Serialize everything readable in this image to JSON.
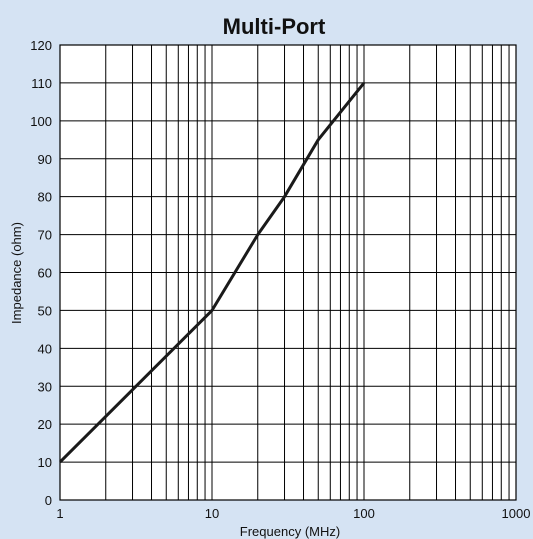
{
  "chart_data": {
    "type": "line",
    "title": "Multi-Port",
    "xlabel": "Frequency (MHz)",
    "ylabel": "Impedance (ohm)",
    "x_scale": "log",
    "xlim": [
      1,
      1000
    ],
    "ylim": [
      0,
      120
    ],
    "grid": true,
    "x_ticks": [
      {
        "value": 1,
        "label": "1"
      },
      {
        "value": 10,
        "label": "10"
      },
      {
        "value": 100,
        "label": "100"
      },
      {
        "value": 1000,
        "label": "1000"
      }
    ],
    "y_ticks": [
      {
        "value": 0,
        "label": "0"
      },
      {
        "value": 10,
        "label": "10"
      },
      {
        "value": 20,
        "label": "20"
      },
      {
        "value": 30,
        "label": "30"
      },
      {
        "value": 40,
        "label": "40"
      },
      {
        "value": 50,
        "label": "50"
      },
      {
        "value": 60,
        "label": "60"
      },
      {
        "value": 70,
        "label": "70"
      },
      {
        "value": 80,
        "label": "80"
      },
      {
        "value": 90,
        "label": "90"
      },
      {
        "value": 100,
        "label": "100"
      },
      {
        "value": 110,
        "label": "110"
      },
      {
        "value": 120,
        "label": "120"
      }
    ],
    "series": [
      {
        "x": [
          1,
          10,
          20,
          30,
          50,
          100
        ],
        "y": [
          10,
          50,
          70,
          80,
          95,
          110
        ]
      }
    ],
    "colors": {
      "background": "#d5e3f3",
      "plot_area": "#ffffff",
      "grid": "#000000",
      "line": "#1a1a1a"
    }
  }
}
